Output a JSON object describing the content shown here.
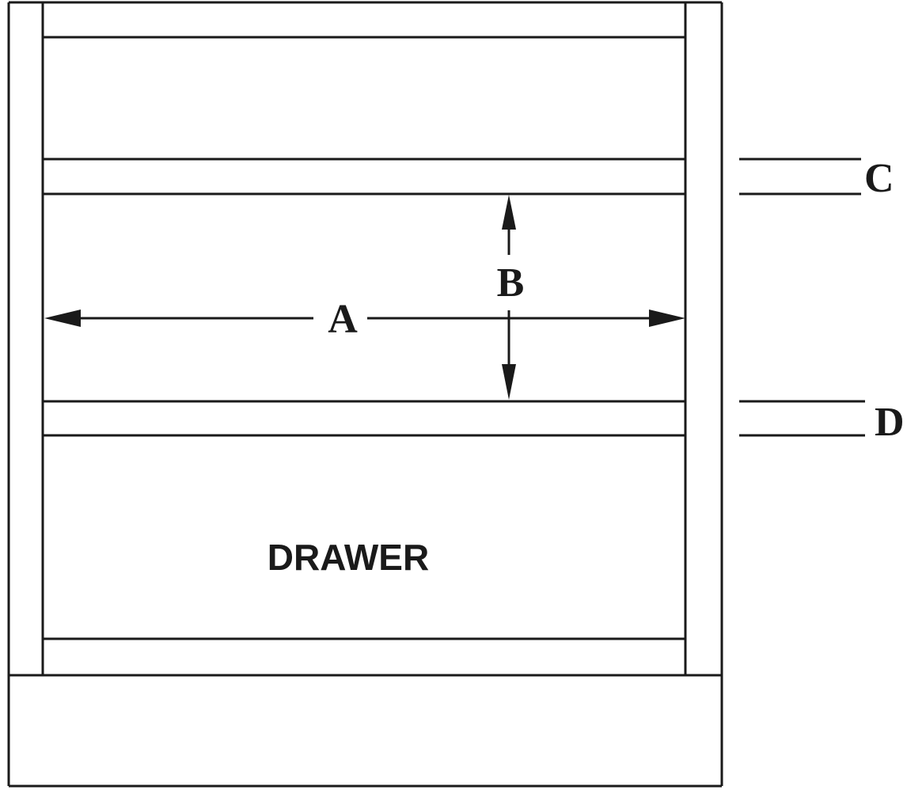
{
  "labels": {
    "a": "A",
    "b": "B",
    "c": "C",
    "d": "D",
    "drawer": "DRAWER"
  },
  "colors": {
    "line": "#1a1a1a",
    "background": "#ffffff"
  }
}
